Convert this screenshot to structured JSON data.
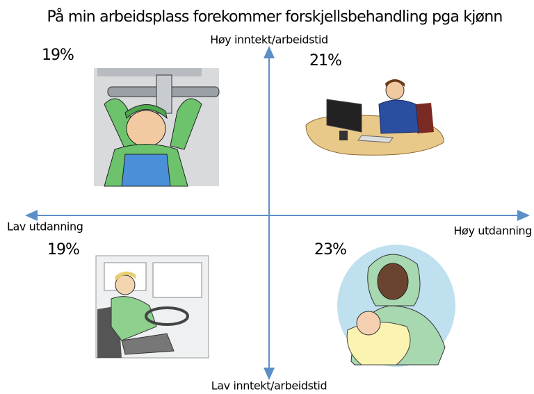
{
  "title": "På min arbeidsplass forekommer forskjellsbehandling pga kjønn",
  "axes": {
    "top": "Høy inntekt/arbeidstid",
    "bottom": "Lav inntekt/arbeidstid",
    "left": "Lav utdanning",
    "right": "Høy utdanning"
  },
  "quadrants": {
    "top_left": "19%",
    "top_right": "21%",
    "bottom_left": "19%",
    "bottom_right": "23%"
  }
}
